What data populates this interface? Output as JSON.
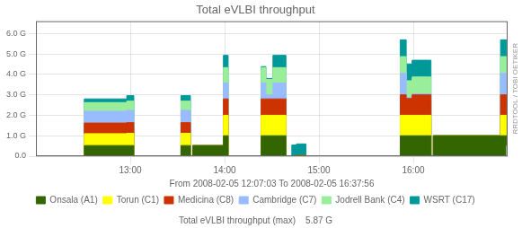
{
  "chart_data": {
    "type": "line",
    "title": "Total eVLBI throughput",
    "xlabel": "From 2008-02-05 12:07:03 To 2008-02-05 16:37:56",
    "annotations": [
      "Total eVLBI throughput (max)    5.87 G",
      "RRDTOOL / TOBI OETIKER"
    ],
    "stacked": true,
    "grid": true,
    "legend": "bottom",
    "line_style": "step",
    "x": [
      0,
      7,
      41,
      77,
      83,
      123,
      131,
      133,
      159,
      163,
      191,
      195,
      201,
      212,
      217,
      221,
      229,
      309,
      314,
      319,
      335,
      337,
      394,
      399
    ],
    "xlim": [
      0,
      400
    ],
    "xticks": [
      {
        "value": 80,
        "label": "13:00"
      },
      {
        "value": 160,
        "label": "14:00"
      },
      {
        "value": 240,
        "label": "15:00"
      },
      {
        "value": 320,
        "label": "16:00"
      }
    ],
    "ylim": [
      0.0,
      6.6
    ],
    "yticks": [
      {
        "value": 0.0,
        "label": "0.0"
      },
      {
        "value": 1.0,
        "label": "1.0 G"
      },
      {
        "value": 2.0,
        "label": "2.0 G"
      },
      {
        "value": 3.0,
        "label": "3.0 G"
      },
      {
        "value": 4.0,
        "label": "4.0 G"
      },
      {
        "value": 5.0,
        "label": "5.0 G"
      },
      {
        "value": 6.0,
        "label": "6.0 G"
      }
    ],
    "series": [
      {
        "name": "Onsala (A1)",
        "color": "#336600",
        "values": [
          0,
          0,
          0.52,
          0.52,
          0,
          0.52,
          0,
          0.52,
          1.0,
          0,
          1.0,
          1.0,
          1.0,
          0,
          0,
          0.05,
          0,
          1.0,
          1.0,
          1.0,
          0,
          1.0,
          1.0,
          0.52
        ]
      },
      {
        "name": "Torun (C1)",
        "color": "#ffff00",
        "values": [
          0,
          0,
          0.58,
          0.6,
          0,
          0.6,
          0,
          0,
          1.0,
          0,
          1.0,
          1.0,
          1.0,
          0,
          0,
          0,
          0,
          1.0,
          1.0,
          1.0,
          0,
          0,
          1.0,
          0
        ]
      },
      {
        "name": "Medicina (C8)",
        "color": "#cc3300",
        "values": [
          0,
          0,
          0.52,
          0.52,
          0,
          0.52,
          0,
          0,
          0.8,
          0,
          0.8,
          0.8,
          0.8,
          0,
          0,
          0,
          0,
          1.0,
          0.82,
          1.0,
          0,
          0,
          1.0,
          0
        ]
      },
      {
        "name": "Cambridge (C7)",
        "color": "#99bbff",
        "values": [
          0,
          0,
          0.58,
          0.6,
          0,
          0.6,
          0,
          0,
          0.78,
          0,
          0.78,
          0.2,
          0.78,
          0,
          0,
          0,
          0,
          1.05,
          0.05,
          0.05,
          0,
          0,
          1.05,
          0
        ]
      },
      {
        "name": "Jodrell Bank (C4)",
        "color": "#99ee99",
        "values": [
          0,
          0,
          0.42,
          0.45,
          0,
          0.45,
          0,
          0,
          0.75,
          0,
          0.75,
          0.75,
          0.75,
          0,
          0,
          0,
          0,
          0.82,
          0.82,
          0.82,
          0,
          0,
          0.82,
          0
        ]
      },
      {
        "name": "WSRT (C17)",
        "color": "#009999",
        "values": [
          0,
          0,
          0.18,
          0.27,
          0,
          0.27,
          0,
          0,
          0.6,
          0,
          0.05,
          0.05,
          0.6,
          0,
          0.55,
          0.55,
          0,
          0.82,
          0.82,
          0.82,
          0,
          0,
          0.82,
          0.18
        ]
      }
    ]
  }
}
